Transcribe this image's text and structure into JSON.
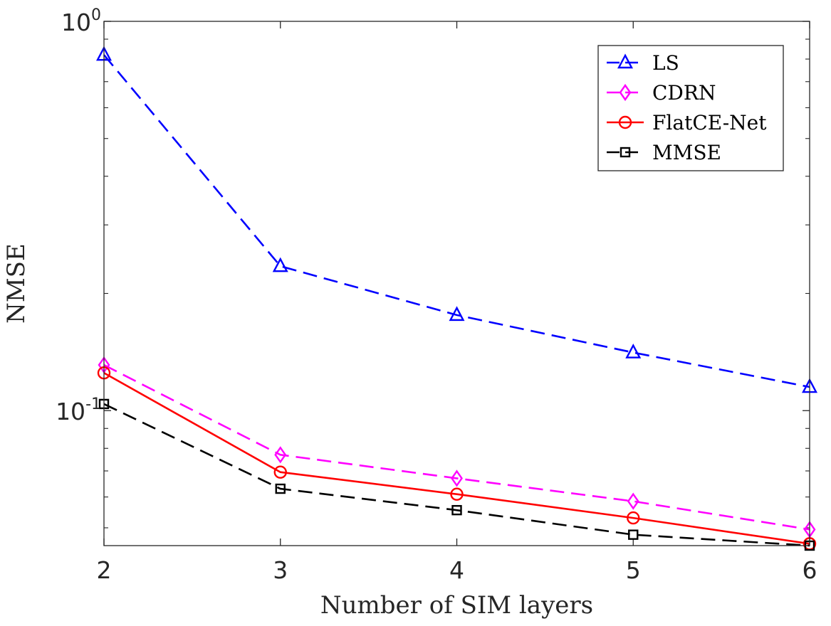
{
  "chart_data": {
    "type": "line",
    "title": "",
    "xlabel": "Number of SIM layers",
    "ylabel": "NMSE",
    "x": [
      2,
      3,
      4,
      5,
      6
    ],
    "xlim": [
      2,
      6
    ],
    "xticks": [
      "2",
      "3",
      "4",
      "5",
      "6"
    ],
    "ylim": [
      0.045,
      1.0
    ],
    "yscale": "log",
    "yticks": [
      {
        "value": 1.0,
        "base": "10",
        "exp": "0"
      },
      {
        "value": 0.1,
        "base": "10",
        "exp": "-1"
      }
    ],
    "grid": false,
    "legend_position": "top-right",
    "series": [
      {
        "name": "LS",
        "values": [
          0.82,
          0.235,
          0.176,
          0.141,
          0.115
        ],
        "color": "#0000ff",
        "dash": "dashed",
        "marker": "triangle"
      },
      {
        "name": "CDRN",
        "values": [
          0.131,
          0.077,
          0.067,
          0.0585,
          0.0495
        ],
        "color": "#ff00ff",
        "dash": "dashed",
        "marker": "diamond"
      },
      {
        "name": "FlatCE-Net",
        "values": [
          0.125,
          0.0695,
          0.061,
          0.053,
          0.0455
        ],
        "color": "#ff0000",
        "dash": "solid",
        "marker": "circle"
      },
      {
        "name": "MMSE",
        "values": [
          0.104,
          0.063,
          0.0555,
          0.048,
          0.045
        ],
        "color": "#000000",
        "dash": "dashed",
        "marker": "square"
      }
    ]
  }
}
